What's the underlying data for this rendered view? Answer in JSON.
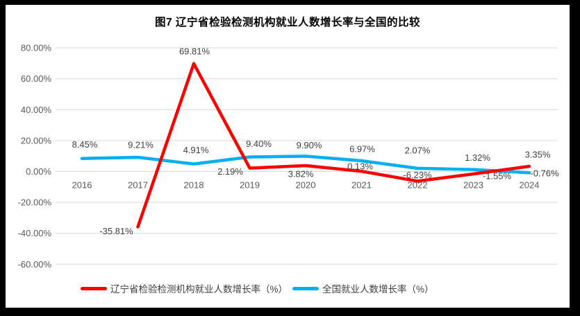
{
  "page": {
    "background_color": "#000000",
    "canvas_color": "#ffffff"
  },
  "chart_data": {
    "type": "line",
    "title": "图7 辽宁省检验检测机构就业人数增长率与全国的比较",
    "categories": [
      "2016",
      "2017",
      "2018",
      "2019",
      "2020",
      "2021",
      "2022",
      "2023",
      "2024"
    ],
    "xlabel": "",
    "ylabel": "",
    "ylim": [
      -60,
      80
    ],
    "grid": "horizontal",
    "legend_position": "bottom",
    "y_axis": {
      "ticks": [
        80,
        60,
        40,
        20,
        0,
        -20,
        -40,
        -60
      ],
      "tick_labels": [
        "80.00%",
        "60.00%",
        "40.00%",
        "20.00%",
        "0.00%",
        "-20.00%",
        "-40.00%",
        "-60.00%"
      ]
    },
    "colors": {
      "series_liaoning": "#ff0000",
      "series_national": "#00b0f0",
      "gridline": "#d9d9d9",
      "axis_text": "#595959",
      "data_label_text": "#404040",
      "title_text": "#000000"
    },
    "series": [
      {
        "name": "辽宁省检验检测机构就业人数增长率（%）",
        "color": "#ff0000",
        "points": [
          {
            "category": "2017",
            "value": -35.81,
            "label": "-35.81%",
            "dx": -31,
            "dy": 6
          },
          {
            "category": "2018",
            "value": 69.81,
            "label": "69.81%",
            "dx": 1,
            "dy": -18
          },
          {
            "category": "2019",
            "value": 2.19,
            "label": "2.19%",
            "dx": -28,
            "dy": 5
          },
          {
            "category": "2020",
            "value": 3.82,
            "label": "3.82%",
            "dx": -7,
            "dy": 12
          },
          {
            "category": "2021",
            "value": 0.13,
            "label": "0.13%",
            "dx": -2,
            "dy": -7
          },
          {
            "category": "2022",
            "value": -6.23,
            "label": "-6.23%",
            "dx": 0,
            "dy": -9
          },
          {
            "category": "2023",
            "value": -1.55,
            "label": "-1.55%",
            "dx": 34,
            "dy": 3
          },
          {
            "category": "2024",
            "value": 3.35,
            "label": "3.35%",
            "dx": 12,
            "dy": -17
          }
        ]
      },
      {
        "name": "全国就业人数增长率（%）",
        "color": "#00b0f0",
        "points": [
          {
            "category": "2016",
            "value": 8.45,
            "label": "8.45%",
            "dx": 4,
            "dy": -20
          },
          {
            "category": "2017",
            "value": 9.21,
            "label": "9.21%",
            "dx": 4,
            "dy": -18
          },
          {
            "category": "2018",
            "value": 4.91,
            "label": "4.91%",
            "dx": 3,
            "dy": -20
          },
          {
            "category": "2019",
            "value": 9.4,
            "label": "9.40%",
            "dx": 13,
            "dy": -19
          },
          {
            "category": "2020",
            "value": 9.9,
            "label": "9.90%",
            "dx": 5,
            "dy": -16
          },
          {
            "category": "2021",
            "value": 6.97,
            "label": "6.97%",
            "dx": 1,
            "dy": -17
          },
          {
            "category": "2022",
            "value": 2.07,
            "label": "2.07%",
            "dx": 0,
            "dy": -26
          },
          {
            "category": "2023",
            "value": 1.32,
            "label": "1.32%",
            "dx": 6,
            "dy": -17
          },
          {
            "category": "2024",
            "value": -0.76,
            "label": "-0.76%",
            "dx": 22,
            "dy": 1
          }
        ]
      }
    ]
  }
}
